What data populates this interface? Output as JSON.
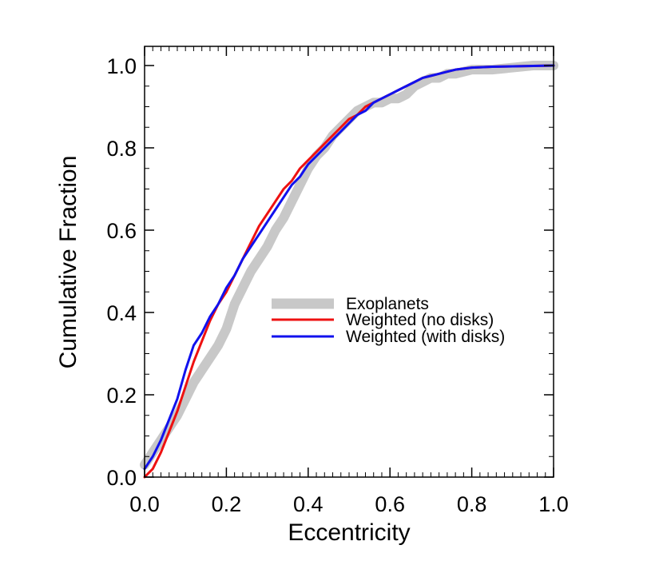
{
  "chart_data": {
    "type": "line",
    "title": "",
    "xlabel": "Eccentricity",
    "ylabel": "Cumulative Fraction",
    "xlim": [
      0.0,
      1.0
    ],
    "ylim": [
      0.0,
      1.0
    ],
    "grid": false,
    "legend_position": "center-right",
    "x_ticks": [
      0.0,
      0.2,
      0.4,
      0.6,
      0.8,
      1.0
    ],
    "y_ticks": [
      0.0,
      0.2,
      0.4,
      0.6,
      0.8,
      1.0
    ],
    "x_tick_labels": [
      "0.0",
      "0.2",
      "0.4",
      "0.6",
      "0.8",
      "1.0"
    ],
    "y_tick_labels": [
      "0.0",
      "0.2",
      "0.4",
      "0.6",
      "0.8",
      "1.0"
    ],
    "series": [
      {
        "name": "Exoplanets",
        "color": "#c8c8c8",
        "style": "thick-band",
        "points": [
          [
            0.0,
            0.03
          ],
          [
            0.02,
            0.06
          ],
          [
            0.04,
            0.09
          ],
          [
            0.06,
            0.12
          ],
          [
            0.08,
            0.15
          ],
          [
            0.1,
            0.19
          ],
          [
            0.12,
            0.23
          ],
          [
            0.14,
            0.26
          ],
          [
            0.16,
            0.29
          ],
          [
            0.18,
            0.32
          ],
          [
            0.2,
            0.36
          ],
          [
            0.22,
            0.42
          ],
          [
            0.24,
            0.46
          ],
          [
            0.26,
            0.5
          ],
          [
            0.28,
            0.53
          ],
          [
            0.3,
            0.56
          ],
          [
            0.32,
            0.6
          ],
          [
            0.34,
            0.63
          ],
          [
            0.36,
            0.67
          ],
          [
            0.38,
            0.71
          ],
          [
            0.4,
            0.75
          ],
          [
            0.42,
            0.78
          ],
          [
            0.44,
            0.8
          ],
          [
            0.46,
            0.83
          ],
          [
            0.48,
            0.85
          ],
          [
            0.5,
            0.87
          ],
          [
            0.52,
            0.89
          ],
          [
            0.54,
            0.9
          ],
          [
            0.56,
            0.91
          ],
          [
            0.58,
            0.91
          ],
          [
            0.6,
            0.92
          ],
          [
            0.62,
            0.92
          ],
          [
            0.64,
            0.93
          ],
          [
            0.66,
            0.95
          ],
          [
            0.68,
            0.96
          ],
          [
            0.7,
            0.97
          ],
          [
            0.72,
            0.97
          ],
          [
            0.74,
            0.98
          ],
          [
            0.76,
            0.98
          ],
          [
            0.8,
            0.99
          ],
          [
            0.85,
            0.99
          ],
          [
            0.9,
            0.995
          ],
          [
            0.95,
            1.0
          ],
          [
            1.0,
            1.0
          ]
        ]
      },
      {
        "name": "Weighted (no disks)",
        "color": "#ee1111",
        "style": "solid",
        "points": [
          [
            0.0,
            0.0
          ],
          [
            0.02,
            0.02
          ],
          [
            0.04,
            0.06
          ],
          [
            0.06,
            0.11
          ],
          [
            0.08,
            0.16
          ],
          [
            0.1,
            0.22
          ],
          [
            0.12,
            0.28
          ],
          [
            0.14,
            0.33
          ],
          [
            0.16,
            0.38
          ],
          [
            0.18,
            0.42
          ],
          [
            0.2,
            0.45
          ],
          [
            0.22,
            0.49
          ],
          [
            0.24,
            0.53
          ],
          [
            0.26,
            0.57
          ],
          [
            0.28,
            0.61
          ],
          [
            0.3,
            0.64
          ],
          [
            0.32,
            0.67
          ],
          [
            0.34,
            0.7
          ],
          [
            0.36,
            0.72
          ],
          [
            0.38,
            0.75
          ],
          [
            0.4,
            0.77
          ],
          [
            0.42,
            0.79
          ],
          [
            0.44,
            0.81
          ],
          [
            0.46,
            0.83
          ],
          [
            0.48,
            0.85
          ],
          [
            0.5,
            0.87
          ],
          [
            0.52,
            0.88
          ],
          [
            0.54,
            0.9
          ],
          [
            0.56,
            0.91
          ],
          [
            0.58,
            0.92
          ],
          [
            0.6,
            0.93
          ],
          [
            0.62,
            0.94
          ],
          [
            0.64,
            0.95
          ],
          [
            0.66,
            0.96
          ],
          [
            0.68,
            0.97
          ],
          [
            0.7,
            0.975
          ],
          [
            0.72,
            0.98
          ],
          [
            0.74,
            0.985
          ],
          [
            0.76,
            0.99
          ],
          [
            0.8,
            0.995
          ],
          [
            0.85,
            0.997
          ],
          [
            0.9,
            0.998
          ],
          [
            0.95,
            0.999
          ],
          [
            1.0,
            1.0
          ]
        ]
      },
      {
        "name": "Weighted (with disks)",
        "color": "#1111ee",
        "style": "solid",
        "points": [
          [
            0.0,
            0.02
          ],
          [
            0.02,
            0.05
          ],
          [
            0.04,
            0.09
          ],
          [
            0.06,
            0.14
          ],
          [
            0.08,
            0.19
          ],
          [
            0.1,
            0.26
          ],
          [
            0.12,
            0.32
          ],
          [
            0.14,
            0.35
          ],
          [
            0.16,
            0.39
          ],
          [
            0.18,
            0.42
          ],
          [
            0.2,
            0.46
          ],
          [
            0.22,
            0.49
          ],
          [
            0.24,
            0.53
          ],
          [
            0.26,
            0.56
          ],
          [
            0.28,
            0.59
          ],
          [
            0.3,
            0.62
          ],
          [
            0.32,
            0.65
          ],
          [
            0.34,
            0.68
          ],
          [
            0.36,
            0.71
          ],
          [
            0.38,
            0.73
          ],
          [
            0.4,
            0.76
          ],
          [
            0.42,
            0.78
          ],
          [
            0.44,
            0.8
          ],
          [
            0.46,
            0.82
          ],
          [
            0.48,
            0.84
          ],
          [
            0.5,
            0.86
          ],
          [
            0.52,
            0.88
          ],
          [
            0.54,
            0.89
          ],
          [
            0.56,
            0.91
          ],
          [
            0.58,
            0.92
          ],
          [
            0.6,
            0.93
          ],
          [
            0.62,
            0.94
          ],
          [
            0.64,
            0.95
          ],
          [
            0.66,
            0.96
          ],
          [
            0.68,
            0.97
          ],
          [
            0.7,
            0.975
          ],
          [
            0.72,
            0.98
          ],
          [
            0.74,
            0.985
          ],
          [
            0.76,
            0.99
          ],
          [
            0.8,
            0.995
          ],
          [
            0.85,
            0.997
          ],
          [
            0.9,
            0.998
          ],
          [
            0.95,
            0.999
          ],
          [
            1.0,
            1.0
          ]
        ]
      }
    ]
  }
}
